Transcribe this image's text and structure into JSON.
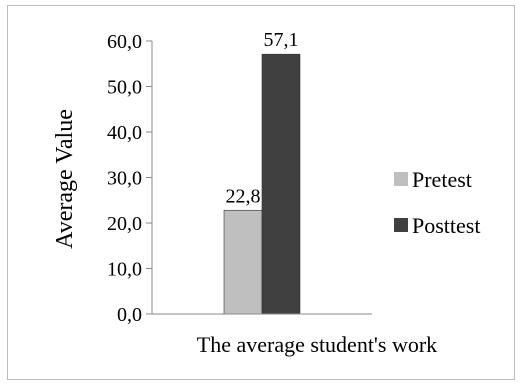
{
  "chart_data": {
    "type": "bar",
    "title": "",
    "xlabel": "",
    "ylabel": "Average Value",
    "categories": [
      "The average student's work"
    ],
    "series": [
      {
        "name": "Pretest",
        "values": [
          22.8
        ],
        "value_labels": [
          "22,8"
        ],
        "color": "#bfbfbf"
      },
      {
        "name": "Posttest",
        "values": [
          57.1
        ],
        "value_labels": [
          "57,1"
        ],
        "color": "#404040"
      }
    ],
    "ylim": [
      0,
      60
    ],
    "yticks": [
      0,
      10,
      20,
      30,
      40,
      50,
      60
    ],
    "ytick_labels": [
      "0,0",
      "10,0",
      "20,0",
      "30,0",
      "40,0",
      "50,0",
      "60,0"
    ],
    "grid": false,
    "legend_position": "right"
  }
}
